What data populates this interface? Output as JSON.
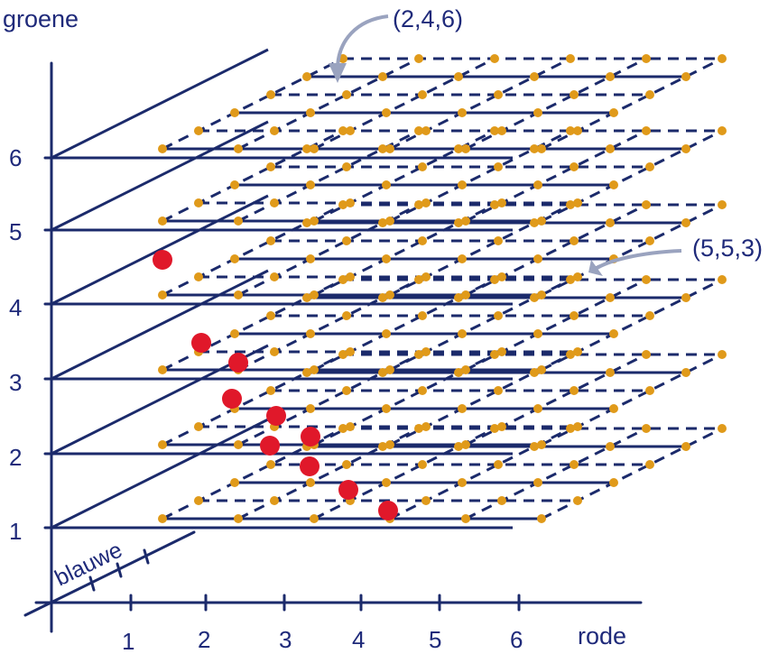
{
  "labels": {
    "green_axis": "groene",
    "blue_axis": "blauwe",
    "red_axis": "rode"
  },
  "ticks": {
    "green": [
      "1",
      "2",
      "3",
      "4",
      "5",
      "6"
    ],
    "red": [
      "1",
      "2",
      "3",
      "4",
      "5",
      "6"
    ]
  },
  "annotations": [
    {
      "text": "(2,4,6)"
    },
    {
      "text": "(5,5,3)"
    }
  ],
  "colors": {
    "line": "#1b2a6b",
    "dot": "#e09a1a",
    "highlight": "#e0182a",
    "arrow": "#9aa3bf"
  }
}
